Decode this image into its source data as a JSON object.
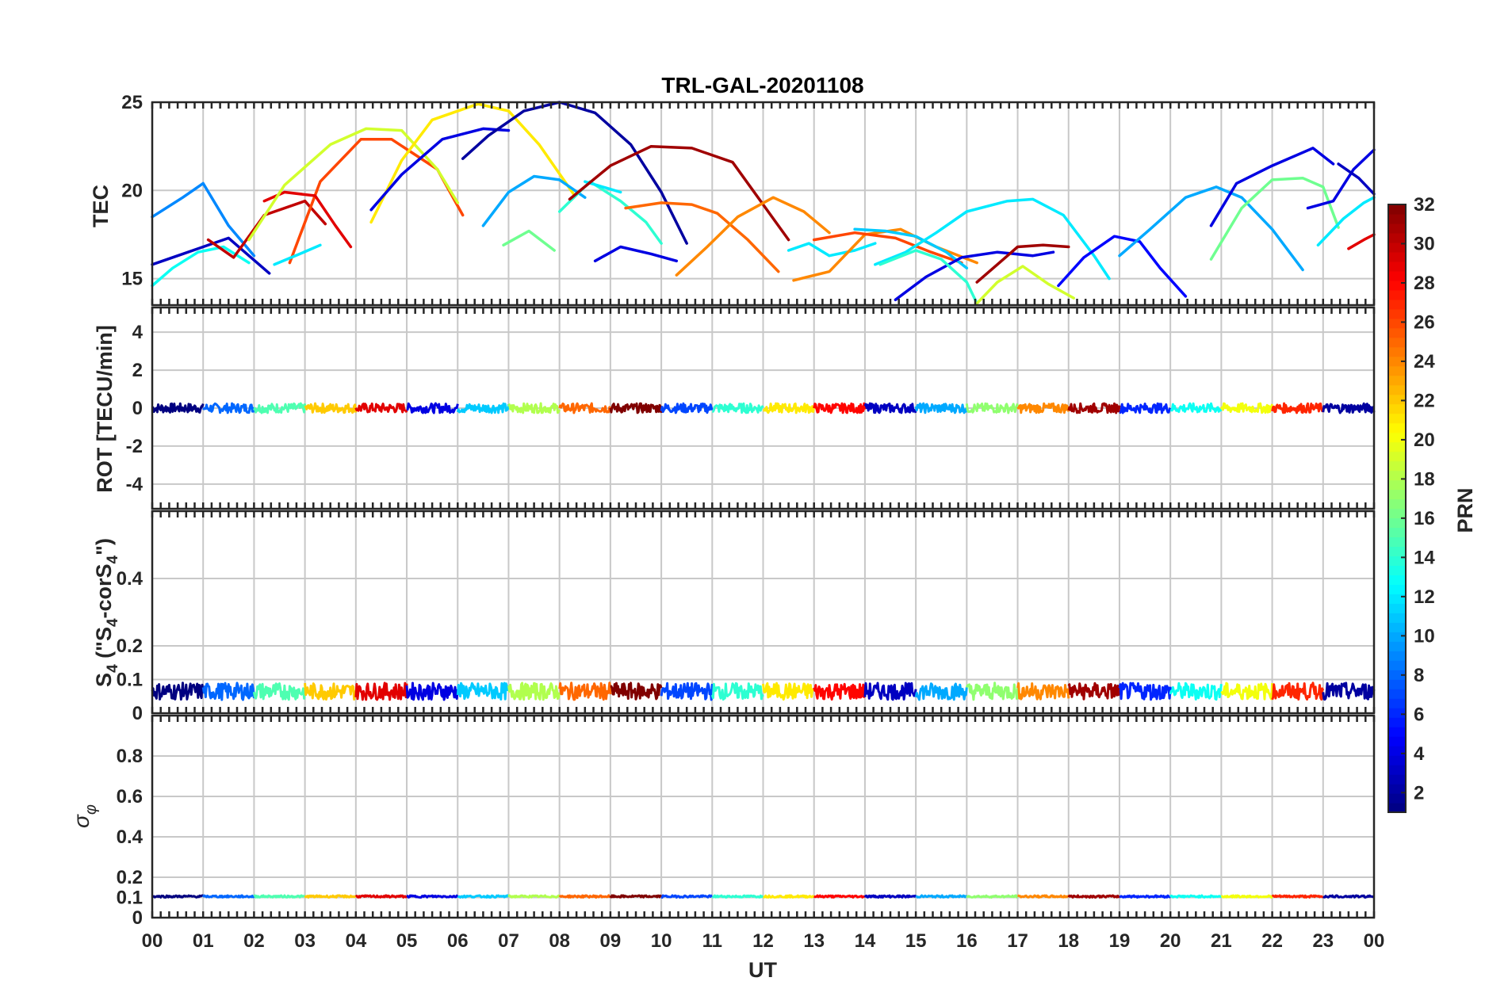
{
  "chart_data": {
    "type": "line",
    "title": "TRL-GAL-20201108",
    "xlabel": "UT",
    "x_ticks": [
      "00",
      "01",
      "02",
      "03",
      "04",
      "05",
      "06",
      "07",
      "08",
      "09",
      "10",
      "11",
      "12",
      "13",
      "14",
      "15",
      "16",
      "17",
      "18",
      "19",
      "20",
      "21",
      "22",
      "23",
      "00"
    ],
    "xlim": [
      0,
      24
    ],
    "grid": true,
    "colorbar": {
      "label": "PRN",
      "range": [
        1,
        32
      ],
      "ticks": [
        "2",
        "4",
        "6",
        "8",
        "10",
        "12",
        "14",
        "16",
        "18",
        "20",
        "22",
        "24",
        "26",
        "28",
        "30",
        "32"
      ],
      "colormap": "jet"
    },
    "panels": [
      {
        "name": "tec",
        "ylabel": "TEC",
        "ylim": [
          13.5,
          25
        ],
        "yticks": [
          "15",
          "20",
          "25"
        ],
        "series": [
          {
            "prn": 3,
            "x": [
              0.0,
              0.5,
              1.0,
              1.5,
              2.3
            ],
            "y": [
              15.8,
              16.3,
              16.8,
              17.3,
              15.3
            ]
          },
          {
            "prn": 9,
            "x": [
              0.0,
              0.6,
              1.0,
              1.5,
              2.0
            ],
            "y": [
              18.5,
              19.6,
              20.4,
              18.0,
              16.3
            ]
          },
          {
            "prn": 13,
            "x": [
              0.0,
              0.4,
              0.9,
              1.4,
              1.9
            ],
            "y": [
              14.6,
              15.6,
              16.5,
              16.8,
              15.9
            ]
          },
          {
            "prn": 30,
            "x": [
              1.1,
              1.6,
              2.2,
              3.0,
              3.4
            ],
            "y": [
              17.2,
              16.2,
              18.6,
              19.4,
              18.1
            ]
          },
          {
            "prn": 26,
            "x": [
              2.7,
              3.3,
              4.1,
              4.7,
              5.6,
              6.1
            ],
            "y": [
              15.9,
              20.5,
              22.9,
              22.9,
              21.2,
              18.6
            ]
          },
          {
            "prn": 29,
            "x": [
              2.2,
              2.6,
              3.2,
              3.6,
              3.9
            ],
            "y": [
              19.4,
              19.9,
              19.7,
              18.0,
              16.8
            ]
          },
          {
            "prn": 19,
            "x": [
              1.9,
              2.6,
              3.5,
              4.2,
              4.9,
              5.6,
              6.0
            ],
            "y": [
              17.2,
              20.3,
              22.6,
              23.5,
              23.4,
              21.2,
              19.3
            ]
          },
          {
            "prn": 12,
            "x": [
              2.4,
              2.9,
              3.3
            ],
            "y": [
              15.8,
              16.4,
              16.9
            ]
          },
          {
            "prn": 21,
            "x": [
              4.3,
              4.9,
              5.5,
              6.4,
              7.0,
              7.6,
              8.3
            ],
            "y": [
              18.2,
              21.7,
              24.0,
              24.9,
              24.5,
              22.6,
              19.7
            ]
          },
          {
            "prn": 4,
            "x": [
              4.3,
              4.9,
              5.7,
              6.5,
              7.0
            ],
            "y": [
              18.9,
              20.9,
              22.9,
              23.5,
              23.4
            ]
          },
          {
            "prn": 2,
            "x": [
              6.1,
              6.6,
              7.3,
              8.0,
              8.7,
              9.4,
              10.0,
              10.5
            ],
            "y": [
              21.8,
              23.1,
              24.5,
              25.0,
              24.4,
              22.6,
              19.9,
              17.0
            ]
          },
          {
            "prn": 10,
            "x": [
              6.5,
              7.0,
              7.5,
              8.0,
              8.5
            ],
            "y": [
              18.0,
              19.9,
              20.8,
              20.6,
              19.6
            ]
          },
          {
            "prn": 14,
            "x": [
              8.0,
              8.6,
              9.2,
              9.7,
              10.0
            ],
            "y": [
              18.8,
              20.5,
              19.4,
              18.2,
              17.0
            ]
          },
          {
            "prn": 12,
            "x": [
              8.5,
              9.2
            ],
            "y": [
              20.5,
              19.9
            ]
          },
          {
            "prn": 16,
            "x": [
              6.9,
              7.4,
              7.9
            ],
            "y": [
              16.9,
              17.7,
              16.6
            ]
          },
          {
            "prn": 4,
            "x": [
              8.7,
              9.2,
              9.8,
              10.3
            ],
            "y": [
              16.0,
              16.8,
              16.4,
              16.0
            ]
          },
          {
            "prn": 31,
            "x": [
              8.2,
              9.0,
              9.8,
              10.6,
              11.4,
              12.0,
              12.5
            ],
            "y": [
              19.5,
              21.4,
              22.5,
              22.4,
              21.6,
              19.2,
              17.2
            ]
          },
          {
            "prn": 25,
            "x": [
              9.3,
              10.0,
              10.6,
              11.1,
              11.7,
              12.3
            ],
            "y": [
              19.0,
              19.3,
              19.2,
              18.7,
              17.2,
              15.4
            ]
          },
          {
            "prn": 24,
            "x": [
              10.3,
              10.9,
              11.5,
              12.2,
              12.8,
              13.3
            ],
            "y": [
              15.2,
              16.8,
              18.5,
              19.6,
              18.8,
              17.6
            ]
          },
          {
            "prn": 12,
            "x": [
              12.5,
              12.9,
              13.3,
              13.8,
              14.2
            ],
            "y": [
              16.6,
              17.0,
              16.3,
              16.6,
              17.0
            ]
          },
          {
            "prn": 24,
            "x": [
              12.6,
              13.3,
              14.0,
              14.7,
              15.4,
              16.2
            ],
            "y": [
              14.9,
              15.4,
              17.5,
              17.8,
              16.8,
              15.9
            ]
          },
          {
            "prn": 26,
            "x": [
              13.0,
              13.8,
              14.6,
              15.3,
              15.9
            ],
            "y": [
              17.2,
              17.6,
              17.3,
              16.5,
              15.9
            ]
          },
          {
            "prn": 11,
            "x": [
              13.8,
              14.4,
              15.0,
              15.6,
              16.0
            ],
            "y": [
              17.8,
              17.7,
              17.4,
              16.5,
              15.6
            ]
          },
          {
            "prn": 12,
            "x": [
              14.2,
              14.8,
              15.4,
              16.0,
              16.8,
              17.3,
              17.9,
              18.5,
              18.8
            ],
            "y": [
              15.8,
              16.5,
              17.6,
              18.8,
              19.4,
              19.5,
              18.6,
              16.3,
              15.0
            ]
          },
          {
            "prn": 4,
            "x": [
              14.6,
              15.2,
              15.9,
              16.6,
              17.3,
              17.7
            ],
            "y": [
              13.8,
              15.1,
              16.2,
              16.5,
              16.3,
              16.5
            ]
          },
          {
            "prn": 14,
            "x": [
              14.3,
              15.0,
              15.5,
              16.0,
              16.2
            ],
            "y": [
              15.8,
              16.6,
              16.1,
              14.8,
              13.6
            ]
          },
          {
            "prn": 31,
            "x": [
              16.2,
              16.6,
              17.0,
              17.5,
              18.0
            ],
            "y": [
              14.8,
              15.8,
              16.8,
              16.9,
              16.8
            ]
          },
          {
            "prn": 19,
            "x": [
              16.2,
              16.6,
              17.1,
              17.6,
              18.1
            ],
            "y": [
              13.6,
              14.8,
              15.7,
              14.7,
              13.9
            ]
          },
          {
            "prn": 5,
            "x": [
              17.8,
              18.3,
              18.9,
              19.4,
              19.8,
              20.3
            ],
            "y": [
              14.6,
              16.2,
              17.4,
              17.1,
              15.6,
              14.0
            ]
          },
          {
            "prn": 10,
            "x": [
              19.0,
              19.6,
              20.3,
              20.9,
              21.4,
              22.0,
              22.6
            ],
            "y": [
              16.3,
              17.8,
              19.6,
              20.2,
              19.6,
              17.8,
              15.5
            ]
          },
          {
            "prn": 4,
            "x": [
              20.8,
              21.3,
              22.0,
              22.8,
              23.2
            ],
            "y": [
              18.0,
              20.4,
              21.4,
              22.4,
              21.5
            ]
          },
          {
            "prn": 16,
            "x": [
              20.8,
              21.4,
              22.0,
              22.6,
              23.0,
              23.3
            ],
            "y": [
              16.1,
              19.0,
              20.6,
              20.7,
              20.2,
              17.9
            ]
          },
          {
            "prn": 4,
            "x": [
              22.7,
              23.2,
              23.6,
              24.0
            ],
            "y": [
              19.0,
              19.4,
              21.2,
              22.3
            ]
          },
          {
            "prn": 3,
            "x": [
              23.3,
              23.7,
              24.0
            ],
            "y": [
              21.5,
              20.7,
              19.8
            ]
          },
          {
            "prn": 12,
            "x": [
              22.9,
              23.4,
              23.8,
              24.0
            ],
            "y": [
              16.9,
              18.4,
              19.3,
              19.6
            ]
          },
          {
            "prn": 29,
            "x": [
              23.5,
              23.8,
              24.0
            ],
            "y": [
              16.7,
              17.2,
              17.5
            ]
          }
        ]
      },
      {
        "name": "rot",
        "ylabel": "ROT [TECU/min]",
        "ylim": [
          -5.3,
          5.3
        ],
        "yticks": [
          "4",
          "2",
          "0",
          "-2",
          "-4"
        ]
      },
      {
        "name": "s4",
        "ylabel": "S4 (\"S4-corS4\")",
        "ylim": [
          0,
          0.6
        ],
        "yticks": [
          "0.4",
          "0.2",
          "0.1",
          "0"
        ]
      },
      {
        "name": "sigma_phi",
        "ylabel": "σφ",
        "ylim": [
          0,
          1
        ],
        "yticks": [
          "0.8",
          "0.6",
          "0.4",
          "0.2",
          "0.1",
          "0"
        ]
      }
    ]
  }
}
